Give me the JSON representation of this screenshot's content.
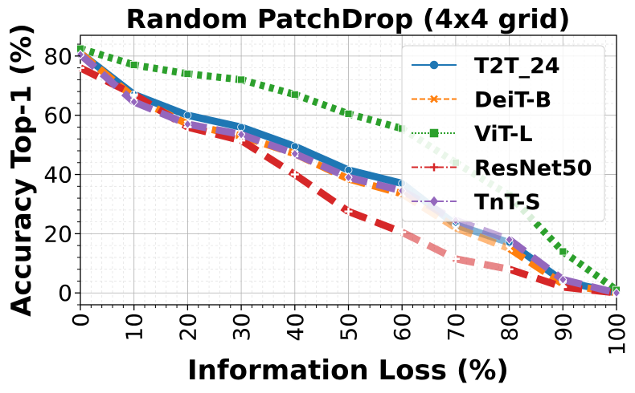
{
  "chart_data": {
    "type": "line",
    "title": "Random PatchDrop (4x4 grid)",
    "xlabel": "Information Loss (%)",
    "ylabel": "Accuracy Top-1 (%)",
    "xlim": [
      0,
      100
    ],
    "ylim": [
      -4,
      87
    ],
    "x_ticks": [
      0,
      10,
      20,
      30,
      40,
      50,
      60,
      70,
      80,
      90,
      100
    ],
    "y_ticks": [
      0,
      20,
      40,
      60,
      80
    ],
    "grid": true,
    "legend_position": "top-right",
    "x": [
      0,
      10,
      20,
      30,
      40,
      50,
      60,
      70,
      80,
      90,
      100
    ],
    "series": [
      {
        "name": "T2T_24",
        "color": "#1f77b4",
        "marker": "circle",
        "linestyle": "solid",
        "values": [
          81,
          67,
          60,
          56,
          49.5,
          41.5,
          37,
          23,
          17,
          4,
          0
        ]
      },
      {
        "name": "DeiT-B",
        "color": "#ff7f0e",
        "marker": "x",
        "linestyle": "dashed",
        "values": [
          81,
          66,
          57,
          53,
          47,
          38.5,
          33.5,
          22,
          15,
          3,
          0
        ]
      },
      {
        "name": "ViT-L",
        "color": "#2ca02c",
        "marker": "square",
        "linestyle": "dotted",
        "values": [
          82.5,
          77,
          74,
          72,
          67,
          60.5,
          55.5,
          44,
          33,
          14,
          1
        ]
      },
      {
        "name": "ResNet50",
        "color": "#d62728",
        "marker": "plus",
        "linestyle": "dashdot",
        "values": [
          76,
          67,
          56,
          51.5,
          40,
          27.5,
          20.5,
          11.5,
          8,
          2,
          0
        ]
      },
      {
        "name": "TnT-S",
        "color": "#9467bd",
        "marker": "diamond",
        "linestyle": "dashdot",
        "values": [
          80.5,
          64.5,
          57,
          53.5,
          47,
          39,
          34.5,
          24.5,
          18,
          4.5,
          0
        ]
      }
    ]
  }
}
